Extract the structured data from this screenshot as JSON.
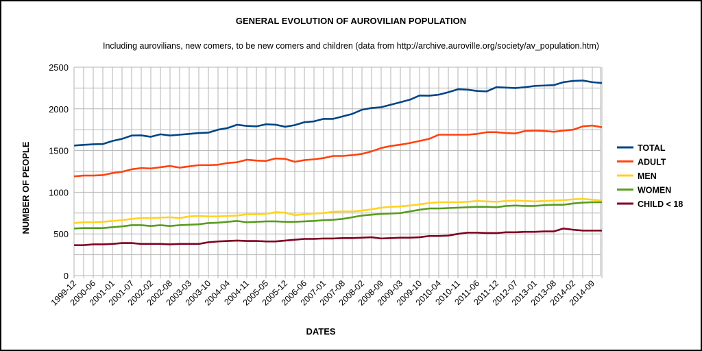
{
  "chart_data": {
    "type": "line",
    "title": "GENERAL EVOLUTION OF AUROVILIAN  POPULATION",
    "subtitle": "Including aurovilians, new comers, to be new comers and children (data from http://archive.auroville.org/society/av_population.htm)",
    "xlabel": "DATES",
    "ylabel": "NUMBER OF PEOPLE",
    "ylim": [
      0,
      2500
    ],
    "yticks": [
      0,
      500,
      1000,
      1500,
      2000,
      2500
    ],
    "grid": true,
    "legend_position": "right",
    "x_tick_labels": [
      "1999-12",
      "2000-06",
      "2001-01",
      "2001-07",
      "2002-02",
      "2002-08",
      "2003-03",
      "2003-10",
      "2004-04",
      "2004-11",
      "2005-05",
      "2005-12",
      "2006-06",
      "2007-01",
      "2007-08",
      "2008-02",
      "2008-09",
      "2009-03",
      "2009-10",
      "2010-04",
      "2010-11",
      "2011-06",
      "2011-12",
      "2012-07",
      "2013-01",
      "2013-08",
      "2014-02",
      "2014-09"
    ],
    "series": [
      {
        "name": "TOTAL",
        "color": "#004586",
        "values": [
          1560,
          1568,
          1575,
          1578,
          1615,
          1640,
          1680,
          1682,
          1665,
          1695,
          1680,
          1690,
          1700,
          1710,
          1715,
          1750,
          1770,
          1810,
          1795,
          1790,
          1815,
          1810,
          1785,
          1805,
          1840,
          1850,
          1880,
          1880,
          1910,
          1940,
          1990,
          2010,
          2020,
          2050,
          2080,
          2110,
          2160,
          2158,
          2170,
          2200,
          2235,
          2230,
          2215,
          2210,
          2260,
          2255,
          2250,
          2260,
          2275,
          2280,
          2285,
          2320,
          2335,
          2340,
          2320,
          2310
        ]
      },
      {
        "name": "ADULT",
        "color": "#ff420e",
        "values": [
          1190,
          1200,
          1200,
          1205,
          1230,
          1245,
          1275,
          1290,
          1285,
          1300,
          1315,
          1295,
          1310,
          1325,
          1325,
          1330,
          1350,
          1360,
          1390,
          1380,
          1375,
          1405,
          1400,
          1365,
          1385,
          1395,
          1410,
          1435,
          1435,
          1445,
          1460,
          1490,
          1530,
          1555,
          1570,
          1590,
          1615,
          1640,
          1690,
          1690,
          1690,
          1690,
          1700,
          1720,
          1720,
          1710,
          1705,
          1735,
          1740,
          1735,
          1725,
          1740,
          1750,
          1790,
          1800,
          1780
        ]
      },
      {
        "name": "MEN",
        "color": "#ffd320",
        "values": [
          630,
          640,
          640,
          645,
          655,
          665,
          680,
          690,
          690,
          695,
          700,
          690,
          710,
          715,
          710,
          710,
          715,
          720,
          735,
          735,
          740,
          760,
          755,
          725,
          735,
          745,
          750,
          765,
          770,
          770,
          780,
          795,
          815,
          825,
          830,
          840,
          855,
          870,
          880,
          880,
          880,
          885,
          895,
          890,
          885,
          895,
          900,
          895,
          890,
          895,
          900,
          905,
          915,
          920,
          910,
          900
        ]
      },
      {
        "name": "WOMEN",
        "color": "#579d1c",
        "values": [
          565,
          570,
          570,
          570,
          580,
          590,
          605,
          605,
          595,
          605,
          595,
          605,
          610,
          615,
          630,
          635,
          645,
          655,
          640,
          645,
          650,
          650,
          645,
          645,
          650,
          655,
          665,
          670,
          680,
          700,
          720,
          730,
          740,
          745,
          750,
          770,
          790,
          805,
          805,
          810,
          815,
          820,
          825,
          825,
          820,
          835,
          840,
          835,
          835,
          845,
          850,
          850,
          865,
          875,
          880,
          880
        ]
      },
      {
        "name": "CHILD < 18",
        "color": "#7e0021",
        "values": [
          365,
          365,
          375,
          375,
          380,
          390,
          390,
          380,
          380,
          380,
          375,
          380,
          380,
          380,
          400,
          410,
          415,
          420,
          415,
          415,
          410,
          410,
          420,
          430,
          440,
          440,
          445,
          445,
          450,
          450,
          455,
          460,
          445,
          450,
          455,
          455,
          460,
          475,
          475,
          480,
          500,
          515,
          515,
          510,
          510,
          520,
          520,
          525,
          525,
          530,
          530,
          565,
          550,
          540,
          540,
          540
        ]
      }
    ]
  }
}
